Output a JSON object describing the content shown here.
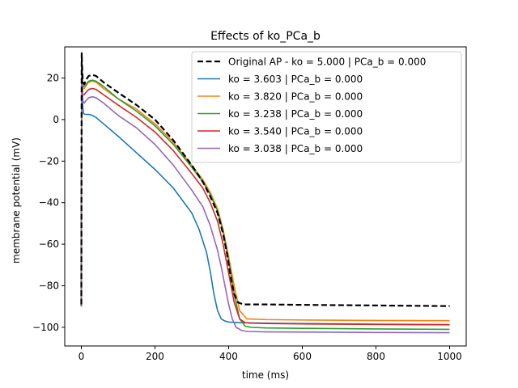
{
  "chart_data": {
    "type": "line",
    "title": "Effects of ko_PCa_b",
    "xlabel": "time (ms)",
    "ylabel": "membrane potential (mV)",
    "xlim": [
      -45,
      1045
    ],
    "ylim": [
      -109,
      35
    ],
    "xticks": [
      0,
      200,
      400,
      600,
      800,
      1000
    ],
    "yticks": [
      -100,
      -80,
      -60,
      -40,
      -20,
      0,
      20
    ],
    "grid": false,
    "legend_position": "top-right",
    "series": [
      {
        "name": "Original AP - ko = 5.000 | PCa_b = 0.000",
        "color": "#000000",
        "dashed": true,
        "x": [
          0,
          1,
          2,
          4,
          8,
          12,
          20,
          30,
          40,
          60,
          100,
          150,
          200,
          250,
          300,
          330,
          350,
          370,
          385,
          395,
          405,
          415,
          425,
          440,
          460,
          500,
          600,
          800,
          1000
        ],
        "y": [
          -89,
          32,
          26,
          18,
          17,
          19,
          21,
          21.5,
          21,
          18,
          13,
          7,
          0,
          -10,
          -22,
          -30,
          -37,
          -45,
          -55,
          -64,
          -75,
          -84,
          -88,
          -89,
          -89,
          -89,
          -89.2,
          -89.5,
          -89.8
        ]
      },
      {
        "name": "ko = 3.603 | PCa_b = 0.000",
        "color": "#1f77b4",
        "dashed": false,
        "x": [
          0,
          1,
          2,
          4,
          6,
          10,
          20,
          30,
          40,
          60,
          100,
          150,
          200,
          250,
          300,
          320,
          340,
          350,
          360,
          370,
          380,
          390,
          400,
          430,
          500,
          600,
          800,
          1000
        ],
        "y": [
          -90,
          31,
          20,
          6,
          3,
          2.5,
          2.5,
          2,
          1,
          -2,
          -8,
          -16,
          -24,
          -33,
          -45,
          -53,
          -64,
          -73,
          -84,
          -92,
          -96,
          -97,
          -97.5,
          -97.8,
          -98,
          -98.2,
          -98.5,
          -98.7
        ]
      },
      {
        "name": "ko = 3.820 | PCa_b = 0.000",
        "color": "#ff7f0e",
        "dashed": false,
        "x": [
          0,
          1,
          2,
          4,
          8,
          12,
          20,
          30,
          40,
          60,
          100,
          150,
          200,
          250,
          300,
          330,
          350,
          370,
          385,
          400,
          415,
          430,
          450,
          500,
          600,
          800,
          1000
        ],
        "y": [
          -89,
          31,
          24,
          15,
          15,
          16,
          18,
          18.5,
          18,
          15,
          10,
          5,
          -2,
          -11,
          -22,
          -29,
          -35,
          -43,
          -53,
          -66,
          -80,
          -92,
          -96,
          -96.3,
          -96.5,
          -96.7,
          -96.8
        ]
      },
      {
        "name": "ko = 3.238 | PCa_b = 0.000",
        "color": "#2ca02c",
        "dashed": false,
        "x": [
          0,
          1,
          2,
          4,
          8,
          12,
          20,
          30,
          40,
          60,
          100,
          150,
          200,
          250,
          300,
          330,
          350,
          370,
          385,
          400,
          415,
          430,
          445,
          460,
          500,
          600,
          800,
          1000
        ],
        "y": [
          -90,
          30,
          25,
          16,
          16,
          17,
          18.5,
          19,
          18.5,
          16,
          10,
          4,
          -3,
          -12,
          -23,
          -30,
          -36,
          -44,
          -54,
          -68,
          -84,
          -96,
          -99.5,
          -100,
          -100.3,
          -100.5,
          -100.8,
          -101
        ]
      },
      {
        "name": "ko = 3.540 | PCa_b = 0.000",
        "color": "#d62728",
        "dashed": false,
        "x": [
          0,
          1,
          2,
          4,
          8,
          12,
          20,
          30,
          40,
          60,
          100,
          150,
          200,
          250,
          300,
          330,
          350,
          370,
          385,
          400,
          415,
          430,
          445,
          460,
          500,
          600,
          800,
          1000
        ],
        "y": [
          -90,
          31,
          22,
          12,
          12,
          13,
          14.5,
          15,
          14.5,
          12,
          7,
          1,
          -6,
          -15,
          -26,
          -33,
          -40,
          -49,
          -60,
          -74,
          -88,
          -96,
          -97.8,
          -98,
          -98.2,
          -98.4,
          -98.6,
          -98.8
        ]
      },
      {
        "name": "ko = 3.038 | PCa_b = 0.000",
        "color": "#9467bd",
        "dashed": false,
        "x": [
          0,
          1,
          2,
          4,
          8,
          12,
          20,
          30,
          40,
          60,
          100,
          150,
          200,
          250,
          300,
          330,
          350,
          370,
          380,
          390,
          400,
          410,
          420,
          435,
          450,
          500,
          600,
          800,
          1000
        ],
        "y": [
          -90,
          30,
          22,
          9,
          8,
          9,
          10.5,
          11,
          10.5,
          8,
          2,
          -4,
          -12,
          -22,
          -34,
          -42,
          -51,
          -63,
          -71,
          -80,
          -89,
          -96,
          -100,
          -101.5,
          -102,
          -102.2,
          -102.3,
          -102.5,
          -102.6
        ]
      }
    ]
  }
}
